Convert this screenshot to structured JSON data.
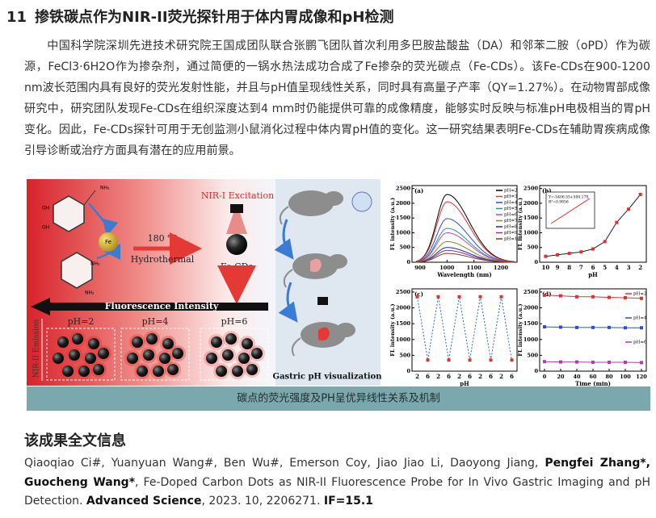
{
  "header": {
    "number": "11",
    "title": "掺铁碳点作为NIR-II荧光探针用于体内胃成像和pH检测"
  },
  "intro": "中国科学院深圳先进技术研究院王国成团队联合张鹏飞团队首次利用多巴胺盐酸盐（DA）和邻苯二胺（oPD）作为碳源，FeCl3·6H2O作为掺杂剂，通过简便的一锅水热法成功合成了Fe掺杂的荧光碳点（Fe-CDs）。该Fe-CDs在900-1200 nm波长范围内具有良好的荧光发射性能，并且与pH值呈现线性关系，同时具有高量子产率（QY=1.27%）。在动物胃部成像研究中，研究团队发现Fe-CDs在组织深度达到4 mm时仍能提供可靠的成像精度，能够实时反映与标准pH电极相当的胃pH变化。因此，Fe-CDs探针可用于无创监测小鼠消化过程中体内胃pH值的变化。这一研究结果表明Fe-CDs在辅助胃疾病成像引导诊断或治疗方面具有潜在的应用前景。",
  "figure": {
    "schematic": {
      "structure_labels": [
        "NH₂",
        "OH",
        "OH",
        "NH₂",
        "NH₂"
      ],
      "fe": "Fe",
      "temperature": "180 ℃",
      "process": "Hydrothermal",
      "excitation": "NIR-I Excitation",
      "product": "Fe-CDs",
      "intensity": "Fluorescence Intensity",
      "emission": "NIR-II Emission",
      "ph_labels": [
        "pH=2",
        "pH=4",
        "pH=6"
      ],
      "visualization": "Gastric pH visualization"
    },
    "panels": [
      {
        "label": "(a)",
        "kind": "spectra",
        "xlabel": "Wavelength (nm)",
        "ylabel": "FL intensity (a.u.)",
        "xlim": [
          870,
          1260
        ],
        "xticks": [
          900,
          1000,
          1100,
          1200
        ],
        "ylim": [
          0,
          2600
        ],
        "yticks": [
          0,
          500,
          1000,
          1500,
          2000,
          2500
        ],
        "series": [
          {
            "name": "pH=2",
            "color": "#000000",
            "peak": 2300
          },
          {
            "name": "pH=3",
            "color": "#e53030",
            "peak": 2050
          },
          {
            "name": "pH=4",
            "color": "#2c4fd1",
            "peak": 1480
          },
          {
            "name": "pH=5",
            "color": "#1a9a8a",
            "peak": 1150
          },
          {
            "name": "pH=6",
            "color": "#d63cc9",
            "peak": 1000
          },
          {
            "name": "pH=7",
            "color": "#8a8a1a",
            "peak": 700
          },
          {
            "name": "pH=8",
            "color": "#1a2a8a",
            "peak": 500
          },
          {
            "name": "pH=9",
            "color": "#8a2ab0",
            "peak": 400
          },
          {
            "name": "pH=10",
            "color": "#8a3a1a",
            "peak": 300
          }
        ]
      },
      {
        "label": "(b)",
        "kind": "line",
        "xlabel": "pH",
        "ylabel": "FL intensity (a.u.)",
        "categories": [
          "10",
          "9",
          "8",
          "7",
          "6",
          "5",
          "4",
          "3",
          "2"
        ],
        "ylim": [
          0,
          2600
        ],
        "yticks": [
          0,
          500,
          1000,
          1500,
          2000,
          2500
        ],
        "series": [
          {
            "color": "#222222",
            "marker_color": "#e53030",
            "values": [
              200,
              250,
              300,
              350,
              450,
              700,
              1350,
              1800,
              2300
            ]
          }
        ],
        "inset": {
          "equation": "Y=-5406.55+500.17X",
          "r2": "R²=0.9856"
        }
      },
      {
        "label": "(c)",
        "kind": "line",
        "xlabel": "pH",
        "ylabel": "FL intensity (a.u.)",
        "categories": [
          "2",
          "6",
          "2",
          "6",
          "2",
          "6",
          "2",
          "6",
          "2",
          "6"
        ],
        "ylim": [
          0,
          2600
        ],
        "yticks": [
          0,
          500,
          1000,
          1500,
          2000,
          2500
        ],
        "series": [
          {
            "color": "#2b6cb0",
            "marker_color": "#e53030",
            "dashed": true,
            "values": [
              2350,
              350,
              2350,
              350,
              2350,
              350,
              2350,
              350,
              2350,
              350
            ]
          }
        ]
      },
      {
        "label": "(d)",
        "kind": "line",
        "xlabel": "Time (min)",
        "ylabel": "FL intensity (a.u.)",
        "xlim": [
          -6,
          126
        ],
        "xticks": [
          0,
          20,
          40,
          60,
          80,
          100,
          120
        ],
        "x": [
          0,
          20,
          40,
          60,
          80,
          100,
          120
        ],
        "ylim": [
          0,
          2600
        ],
        "yticks": [
          0,
          500,
          1000,
          1500,
          2000,
          2500
        ],
        "series": [
          {
            "name": "pH=2",
            "color": "#e53030",
            "marker_color": "#e53030",
            "values": [
              2400,
              2380,
              2350,
              2350,
              2330,
              2320,
              2300
            ]
          },
          {
            "name": "pH=4",
            "color": "#2c4fd1",
            "marker_color": "#2c4fd1",
            "values": [
              1400,
              1390,
              1380,
              1380,
              1380,
              1370,
              1370
            ]
          },
          {
            "name": "pH=6",
            "color": "#b03ab0",
            "marker_color": "#b03ab0",
            "values": [
              300,
              290,
              290,
              280,
              280,
              280,
              270
            ]
          }
        ]
      }
    ],
    "caption": "碳点的荧光强度及PH呈优异线性关系及机制"
  },
  "section_title": "该成果全文信息",
  "citation": [
    {
      "text": "Qiaoqiao Ci#, Yuanyuan Wang#, Ben Wu#, Emerson Coy, Jiao Jiao Li, Daoyong Jiang, ",
      "bold": false
    },
    {
      "text": "Pengfei Zhang*, Guocheng Wang*",
      "bold": true
    },
    {
      "text": ", Fe-Doped Carbon Dots as NIR-II Fluorescence Probe for In Vivo Gastric Imaging and pH Detection. ",
      "bold": false
    },
    {
      "text": "Advanced Science",
      "bold": true
    },
    {
      "text": ", 2023. 10, 2206271. ",
      "bold": false
    },
    {
      "text": "IF=15.1",
      "bold": true
    }
  ]
}
